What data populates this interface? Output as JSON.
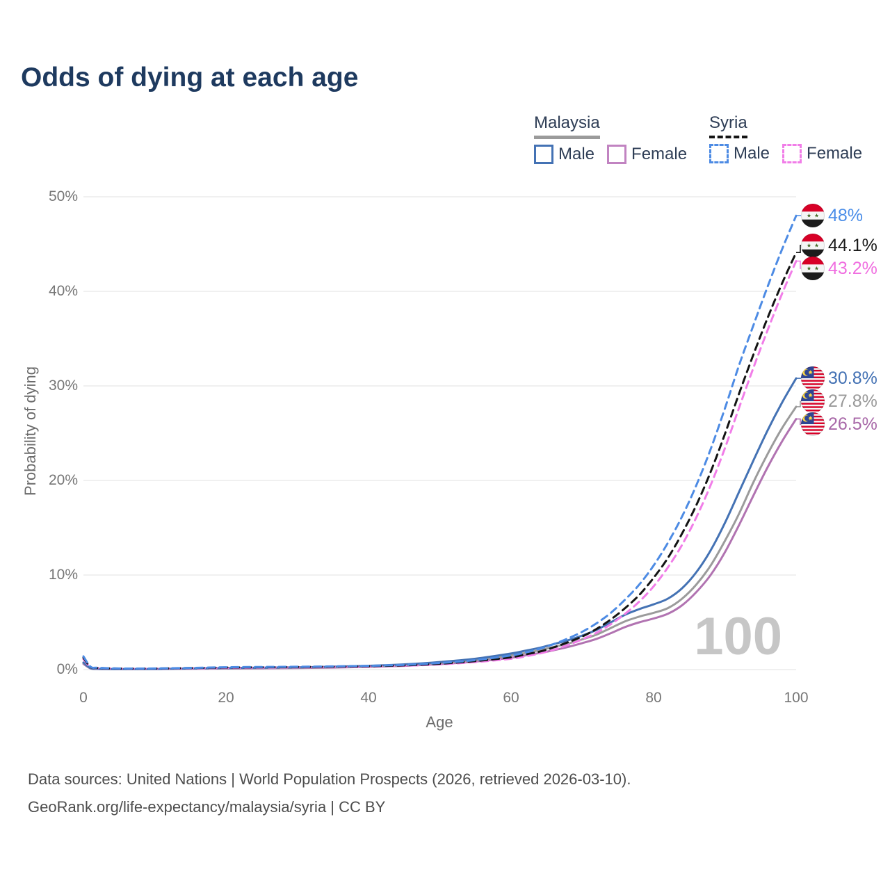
{
  "title": "Odds of dying at each age",
  "legend": {
    "groups": [
      {
        "name": "Malaysia",
        "line_style": "solid",
        "underline_color": "#9b9b9b",
        "items": [
          {
            "label": "Male",
            "color": "#4472b4"
          },
          {
            "label": "Female",
            "color": "#c183c1"
          }
        ]
      },
      {
        "name": "Syria",
        "line_style": "dashed",
        "underline_color": "#141414",
        "items": [
          {
            "label": "Male",
            "color": "#4d8be4"
          },
          {
            "label": "Female",
            "color": "#f17de8"
          }
        ]
      }
    ]
  },
  "chart_data": {
    "type": "line",
    "title": "Odds of dying at each age",
    "xlabel": "Age",
    "ylabel": "Probability of dying",
    "xlim": [
      0,
      100
    ],
    "ylim": [
      0,
      50
    ],
    "x_ticks": [
      0,
      20,
      40,
      60,
      80,
      100
    ],
    "y_ticks": [
      0,
      10,
      20,
      30,
      40,
      50
    ],
    "y_tick_suffix": "%",
    "grid": true,
    "legend_position": "top-right",
    "hover_age_watermark": "100",
    "ages": [
      0,
      1,
      2,
      5,
      10,
      15,
      20,
      25,
      30,
      35,
      40,
      45,
      50,
      55,
      60,
      62,
      64,
      66,
      68,
      70,
      72,
      74,
      76,
      78,
      80,
      82,
      84,
      86,
      88,
      90,
      92,
      94,
      96,
      98,
      100
    ],
    "series": [
      {
        "id": "syria-male",
        "name": "Syria Male",
        "country": "Syria",
        "sex": "Male",
        "flag": "syria",
        "dashed": true,
        "color": "#4d8be4",
        "label_color": "#4a8de8",
        "end_label": "48%",
        "end_value": 48.0,
        "values": [
          1.4,
          0.3,
          0.2,
          0.12,
          0.12,
          0.18,
          0.25,
          0.28,
          0.3,
          0.34,
          0.4,
          0.5,
          0.7,
          1.0,
          1.5,
          1.8,
          2.2,
          2.7,
          3.3,
          4.0,
          4.9,
          6.0,
          7.4,
          9.0,
          11.0,
          13.4,
          16.2,
          19.5,
          23.3,
          27.6,
          32.2,
          36.4,
          40.5,
          44.4,
          48.0
        ]
      },
      {
        "id": "syria-all",
        "name": "Syria",
        "country": "Syria",
        "sex": "All",
        "flag": "syria",
        "dashed": true,
        "color": "#141414",
        "label_color": "#1a1a1a",
        "end_label": "44.1%",
        "end_value": 44.1,
        "values": [
          1.25,
          0.27,
          0.18,
          0.11,
          0.11,
          0.16,
          0.22,
          0.25,
          0.27,
          0.3,
          0.36,
          0.45,
          0.62,
          0.9,
          1.3,
          1.6,
          1.9,
          2.35,
          2.9,
          3.5,
          4.3,
          5.3,
          6.5,
          7.9,
          9.7,
          11.8,
          14.4,
          17.4,
          20.9,
          24.9,
          29.2,
          33.3,
          37.2,
          40.8,
          44.1
        ]
      },
      {
        "id": "syria-female",
        "name": "Syria Female",
        "country": "Syria",
        "sex": "Female",
        "flag": "syria",
        "dashed": true,
        "color": "#f17de8",
        "label_color": "#f06ee0",
        "end_label": "43.2%",
        "end_value": 43.2,
        "values": [
          1.1,
          0.24,
          0.16,
          0.1,
          0.1,
          0.13,
          0.18,
          0.21,
          0.24,
          0.27,
          0.32,
          0.41,
          0.55,
          0.8,
          1.15,
          1.4,
          1.7,
          2.1,
          2.6,
          3.2,
          3.9,
          4.8,
          5.9,
          7.2,
          8.8,
          10.8,
          13.2,
          16.1,
          19.5,
          23.4,
          27.7,
          31.9,
          35.9,
          39.7,
          43.2
        ]
      },
      {
        "id": "malaysia-male",
        "name": "Malaysia Male",
        "country": "Malaysia",
        "sex": "Male",
        "flag": "malaysia",
        "dashed": false,
        "color": "#4472b4",
        "label_color": "#4472b4",
        "end_label": "30.8%",
        "end_value": 30.8,
        "values": [
          0.75,
          0.15,
          0.08,
          0.05,
          0.06,
          0.12,
          0.17,
          0.2,
          0.24,
          0.3,
          0.4,
          0.55,
          0.8,
          1.15,
          1.7,
          2.0,
          2.3,
          2.7,
          3.1,
          3.6,
          4.2,
          5.0,
          5.8,
          6.4,
          6.9,
          7.5,
          8.6,
          10.3,
          12.6,
          15.5,
          18.8,
          22.1,
          25.3,
          28.2,
          30.8
        ]
      },
      {
        "id": "malaysia-all",
        "name": "Malaysia",
        "country": "Malaysia",
        "sex": "All",
        "flag": "malaysia",
        "dashed": false,
        "color": "#9b9b9b",
        "label_color": "#999999",
        "end_label": "27.8%",
        "end_value": 27.8,
        "values": [
          0.7,
          0.13,
          0.07,
          0.05,
          0.05,
          0.1,
          0.14,
          0.17,
          0.2,
          0.26,
          0.35,
          0.48,
          0.7,
          1.0,
          1.5,
          1.75,
          2.05,
          2.4,
          2.75,
          3.2,
          3.7,
          4.4,
          5.1,
          5.6,
          6.0,
          6.5,
          7.5,
          9.0,
          11.0,
          13.6,
          16.5,
          19.8,
          22.8,
          25.5,
          27.8
        ]
      },
      {
        "id": "malaysia-female",
        "name": "Malaysia Female",
        "country": "Malaysia",
        "sex": "Female",
        "flag": "malaysia",
        "dashed": false,
        "color": "#b173b1",
        "label_color": "#a868a8",
        "end_label": "26.5%",
        "end_value": 26.5,
        "values": [
          0.6,
          0.12,
          0.06,
          0.04,
          0.05,
          0.08,
          0.11,
          0.13,
          0.16,
          0.21,
          0.29,
          0.4,
          0.58,
          0.85,
          1.25,
          1.5,
          1.75,
          2.05,
          2.4,
          2.8,
          3.25,
          3.85,
          4.5,
          5.0,
          5.4,
          5.9,
          6.8,
          8.2,
          10.0,
          12.4,
          15.3,
          18.4,
          21.4,
          24.1,
          26.5
        ]
      }
    ]
  },
  "footer": {
    "line1": "Data sources: United Nations | World Population Prospects (2026, retrieved 2026-03-10).",
    "line2": "GeoRank.org/life-expectancy/malaysia/syria | CC BY"
  }
}
